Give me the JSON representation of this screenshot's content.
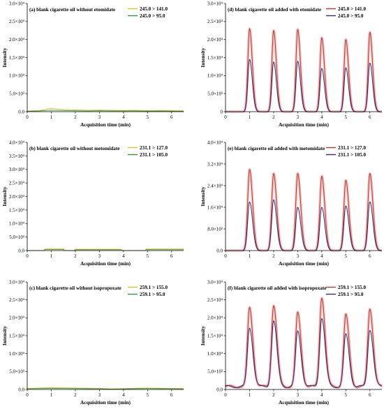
{
  "colors": {
    "left_a": "#e8c020",
    "left_b": "#2e9a3a",
    "right_a": "#b23a2e",
    "right_b": "#3a2a7a",
    "right_halo": "#f4c8c8"
  },
  "chart_data": [
    {
      "panel": "a",
      "type": "line",
      "title": "(a) blank cigarette oil without etomidate",
      "xlabel": "Acquisition time (min)",
      "ylabel": "Intensity",
      "xlim": [
        0,
        6.5
      ],
      "ylim": [
        0,
        30000
      ],
      "xticks": [
        0,
        1,
        2,
        3,
        4,
        5,
        6
      ],
      "xtick_labels": [
        "0",
        "1",
        "2",
        "3",
        "4",
        "5",
        "6"
      ],
      "yticks": [
        0,
        5000,
        10000,
        15000,
        20000,
        25000,
        30000
      ],
      "ytick_labels": [
        "0.0",
        "5.0×10³",
        "1.0×10⁴",
        "1.5×10⁴",
        "2.0×10⁴",
        "2.5×10⁴",
        "3.0×10⁴"
      ],
      "legend_position": "top-right",
      "series": [
        {
          "name": "245.0 > 141.0",
          "color": "#e8c020",
          "x": [
            0,
            0.5,
            0.8,
            1.0,
            1.3,
            1.6,
            2.0,
            2.5,
            3.0,
            3.5,
            4.0,
            4.5,
            5.0,
            5.5,
            6.0,
            6.5
          ],
          "y": [
            200,
            300,
            700,
            900,
            700,
            600,
            500,
            400,
            450,
            400,
            350,
            400,
            300,
            350,
            300,
            250
          ]
        },
        {
          "name": "245.0 > 95.0",
          "color": "#2e9a3a",
          "x": [
            0,
            0.5,
            0.8,
            1.0,
            1.3,
            1.6,
            2.0,
            2.5,
            3.0,
            3.5,
            4.0,
            4.5,
            5.0,
            5.5,
            6.0,
            6.5
          ],
          "y": [
            100,
            200,
            350,
            400,
            350,
            300,
            250,
            200,
            250,
            200,
            200,
            200,
            150,
            200,
            150,
            100
          ]
        }
      ]
    },
    {
      "panel": "b",
      "type": "line",
      "title": "(b) blank cigarette oil without metomidate",
      "xlabel": "Acquisition time (min)",
      "ylabel": "Intensity",
      "xlim": [
        0,
        6.5
      ],
      "ylim": [
        0,
        40000
      ],
      "xticks": [
        0,
        1,
        2,
        3,
        4,
        5,
        6
      ],
      "xtick_labels": [
        "0",
        "1",
        "2",
        "3",
        "4",
        "5",
        "6"
      ],
      "yticks": [
        0,
        5000,
        10000,
        15000,
        20000,
        25000,
        30000,
        35000,
        40000
      ],
      "ytick_labels": [
        "0.0",
        "5.0×10³",
        "1.0×10⁴",
        "1.5×10⁴",
        "2.0×10⁴",
        "2.5×10⁴",
        "3.0×10⁴",
        "3.5×10⁴",
        "4.0×10⁴"
      ],
      "legend_position": "top-right",
      "series": [
        {
          "name": "231.1 > 127.0",
          "color": "#e8c020",
          "x": [
            0,
            0.7,
            0.75,
            1.5,
            1.55,
            1.95,
            2.0,
            3.9,
            3.95,
            4.9,
            4.95,
            6.5
          ],
          "y": [
            0,
            0,
            700,
            700,
            0,
            0,
            500,
            500,
            0,
            0,
            600,
            600
          ]
        },
        {
          "name": "231.1 > 105.0",
          "color": "#2e9a3a",
          "x": [
            0,
            0.7,
            0.75,
            1.5,
            1.55,
            1.95,
            2.0,
            3.9,
            3.95,
            4.9,
            4.95,
            6.5
          ],
          "y": [
            0,
            0,
            400,
            400,
            0,
            0,
            300,
            300,
            0,
            0,
            350,
            350
          ]
        }
      ]
    },
    {
      "panel": "c",
      "type": "line",
      "title": "(c) blank cigarette oil without isopropoxate",
      "xlabel": "Acquisition time (min)",
      "ylabel": "Intensity",
      "xlim": [
        0,
        6.5
      ],
      "ylim": [
        0,
        30000
      ],
      "xticks": [
        0,
        1,
        2,
        3,
        4,
        5,
        6
      ],
      "xtick_labels": [
        "0",
        "1",
        "2",
        "3",
        "4",
        "5",
        "6"
      ],
      "yticks": [
        0,
        5000,
        10000,
        15000,
        20000,
        25000,
        30000
      ],
      "ytick_labels": [
        "0.0",
        "5.0×10³",
        "1.0×10⁴",
        "1.5×10⁴",
        "2.0×10⁴",
        "2.5×10⁴",
        "3.0×10⁴"
      ],
      "legend_position": "top-right",
      "series": [
        {
          "name": "259.1 > 155.0",
          "color": "#e8c020",
          "x": [
            0,
            0.5,
            1.0,
            1.5,
            2.0,
            2.5,
            3.0,
            3.5,
            4.0,
            4.5,
            5.0,
            5.5,
            6.0,
            6.5
          ],
          "y": [
            300,
            400,
            500,
            450,
            400,
            350,
            300,
            150,
            250,
            350,
            400,
            350,
            300,
            250
          ]
        },
        {
          "name": "259.1 > 95.0",
          "color": "#2e9a3a",
          "x": [
            0,
            0.5,
            1.0,
            1.5,
            2.0,
            2.5,
            3.0,
            3.5,
            4.0,
            4.5,
            5.0,
            5.5,
            6.0,
            6.5
          ],
          "y": [
            200,
            250,
            300,
            280,
            250,
            220,
            200,
            100,
            150,
            220,
            250,
            220,
            200,
            150
          ]
        }
      ]
    },
    {
      "panel": "d",
      "type": "line",
      "title": "(d) blank cigarette oil added with etomidate",
      "xlabel": "Acquisition time (min)",
      "ylabel": "Intensity",
      "xlim": [
        0,
        6.5
      ],
      "ylim": [
        0,
        30000
      ],
      "xticks": [
        0,
        1,
        2,
        3,
        4,
        5,
        6
      ],
      "xtick_labels": [
        "0",
        "1",
        "2",
        "3",
        "4",
        "5",
        "6"
      ],
      "yticks": [
        0,
        5000,
        10000,
        15000,
        20000,
        25000,
        30000
      ],
      "ytick_labels": [
        "0",
        "5.0×10³",
        "1.0×10⁴",
        "1.5×10⁴",
        "2.0×10⁴",
        "2.5×10⁴",
        "3.0×10⁴"
      ],
      "legend_position": "top-right",
      "peak_times": [
        1,
        2,
        3,
        4,
        5,
        6
      ],
      "peak_width": 0.09,
      "series": [
        {
          "name": "245.0 > 141.0",
          "color": "#b23a2e",
          "peak_heights": [
            23000,
            22500,
            22800,
            20500,
            20000,
            22000
          ]
        },
        {
          "name": "245.0 > 95.0",
          "color": "#3a2a7a",
          "peak_heights": [
            14500,
            13800,
            14000,
            12000,
            12200,
            13500
          ]
        }
      ]
    },
    {
      "panel": "e",
      "type": "line",
      "title": "(e) blank cigarette oil added with metomidate",
      "xlabel": "Acquisition time (min)",
      "ylabel": "Intensity",
      "xlim": [
        0,
        6.5
      ],
      "ylim": [
        0,
        40000
      ],
      "xticks": [
        0,
        1,
        2,
        3,
        4,
        5,
        6
      ],
      "xtick_labels": [
        "0",
        "1",
        "2",
        "3",
        "4",
        "5",
        "6"
      ],
      "yticks": [
        0,
        8000,
        16000,
        24000,
        32000,
        40000
      ],
      "ytick_labels": [
        "0.0",
        "8.0×10³",
        "1.6×10⁴",
        "2.4×10⁴",
        "3.2×10⁴",
        "4.0×10⁴"
      ],
      "legend_position": "top-right",
      "peak_times": [
        1,
        2,
        3,
        4,
        5,
        6
      ],
      "peak_width": 0.1,
      "series": [
        {
          "name": "231.1 > 127.0",
          "color": "#b23a2e",
          "peak_heights": [
            30000,
            28500,
            28500,
            27500,
            26000,
            28500
          ]
        },
        {
          "name": "231.1 > 105.0",
          "color": "#3a2a7a",
          "peak_heights": [
            18000,
            18800,
            16000,
            16000,
            16500,
            18000
          ]
        }
      ]
    },
    {
      "panel": "f",
      "type": "line",
      "title": "(f) blank cigarette oil added with isopropoxate",
      "xlabel": "Acquisition time (min)",
      "ylabel": "Intensity",
      "xlim": [
        0,
        6.5
      ],
      "ylim": [
        0,
        30000
      ],
      "xticks": [
        0,
        1,
        2,
        3,
        4,
        5,
        6
      ],
      "xtick_labels": [
        "0",
        "1",
        "2",
        "3",
        "4",
        "5",
        "6"
      ],
      "yticks": [
        0,
        5000,
        10000,
        15000,
        20000,
        25000,
        30000
      ],
      "ytick_labels": [
        "0.0",
        "5.0×10³",
        "1.0×10⁴",
        "1.5×10⁴",
        "2.0×10⁴",
        "2.5×10⁴",
        "3.0×10⁴"
      ],
      "legend_position": "top-right",
      "peak_times": [
        1,
        2,
        3,
        4,
        5,
        6
      ],
      "peak_width": 0.11,
      "baseline": 800,
      "series": [
        {
          "name": "259.1 > 155.0",
          "color": "#b23a2e",
          "peak_heights": [
            22000,
            22800,
            20500,
            25000,
            20000,
            21800
          ]
        },
        {
          "name": "259.1 > 95.0",
          "color": "#3a2a7a",
          "peak_heights": [
            16500,
            18300,
            15500,
            19200,
            14500,
            16000
          ]
        }
      ]
    }
  ]
}
